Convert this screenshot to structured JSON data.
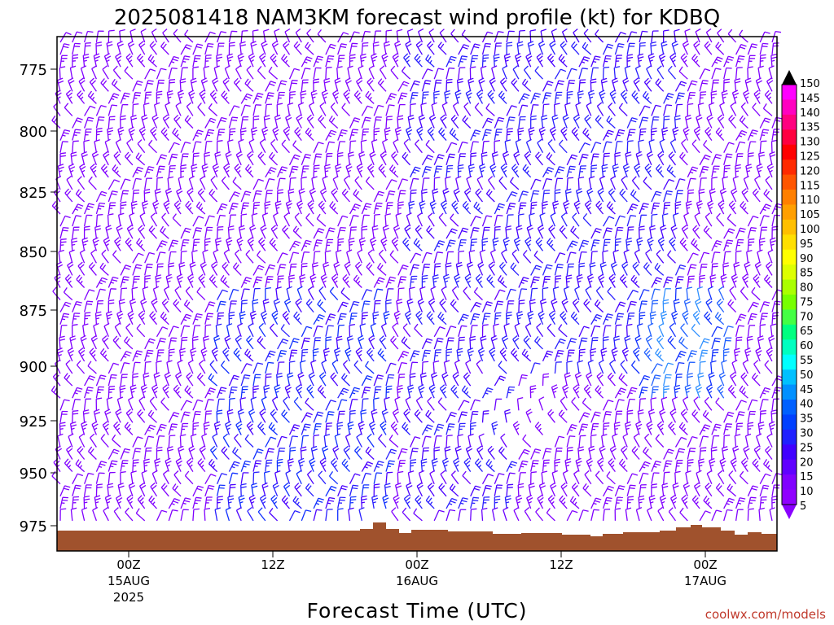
{
  "chart_data": {
    "type": "wind-barb",
    "title": "2025081418 NAM3KM forecast wind profile (kt) for KDBQ",
    "xlabel": "Forecast Time (UTC)",
    "ylabel": "",
    "y_ticks": [
      "775",
      "800",
      "825",
      "850",
      "875",
      "900",
      "925",
      "950",
      "975"
    ],
    "x_ticks": [
      {
        "lines": [
          "00Z",
          "15AUG",
          "2025"
        ]
      },
      {
        "lines": [
          "12Z"
        ]
      },
      {
        "lines": [
          "00Z",
          "16AUG"
        ]
      },
      {
        "lines": [
          "12Z"
        ]
      },
      {
        "lines": [
          "00Z",
          "17AUG"
        ]
      }
    ],
    "colorbar": {
      "labels": [
        "150",
        "145",
        "140",
        "135",
        "130",
        "125",
        "120",
        "115",
        "110",
        "105",
        "100",
        "95",
        "90",
        "85",
        "80",
        "75",
        "70",
        "65",
        "60",
        "55",
        "50",
        "45",
        "40",
        "35",
        "30",
        "25",
        "20",
        "15",
        "10",
        "5"
      ],
      "colors": [
        "#ff00ff",
        "#ff00c0",
        "#ff0080",
        "#ff0040",
        "#ff0000",
        "#ff2a00",
        "#ff5500",
        "#ff7f00",
        "#ff9f00",
        "#ffbf00",
        "#ffdf00",
        "#ffff00",
        "#ddff00",
        "#aaff00",
        "#77ff00",
        "#44ff44",
        "#00ff80",
        "#00ffc0",
        "#00ffff",
        "#00c0ff",
        "#0090ff",
        "#0060ff",
        "#0040ff",
        "#2020ff",
        "#4000ff",
        "#6000ff",
        "#8000ff",
        "#9000ff"
      ]
    }
  },
  "credit": "coolwx.com/models"
}
